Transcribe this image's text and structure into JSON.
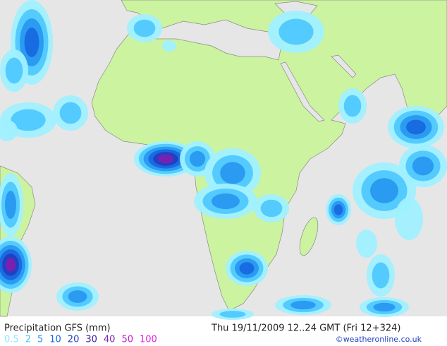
{
  "header": {
    "title": "Precipitation GFS (mm)",
    "timestamp": "Thu 19/11/2009 12..24 GMT (Fri 12+324)",
    "credit": "©weatheronline.co.uk"
  },
  "legend": {
    "items": [
      {
        "value": 0.5,
        "color": "#8ee8ff"
      },
      {
        "value": 2,
        "color": "#40c8ff"
      },
      {
        "value": 5,
        "color": "#2898f0"
      },
      {
        "value": 10,
        "color": "#1868e0"
      },
      {
        "value": 20,
        "color": "#2040c0"
      },
      {
        "value": 30,
        "color": "#4020a0"
      },
      {
        "value": 40,
        "color": "#8020b0"
      },
      {
        "value": 50,
        "color": "#c020c8"
      },
      {
        "value": 100,
        "color": "#e820e8"
      }
    ]
  }
}
